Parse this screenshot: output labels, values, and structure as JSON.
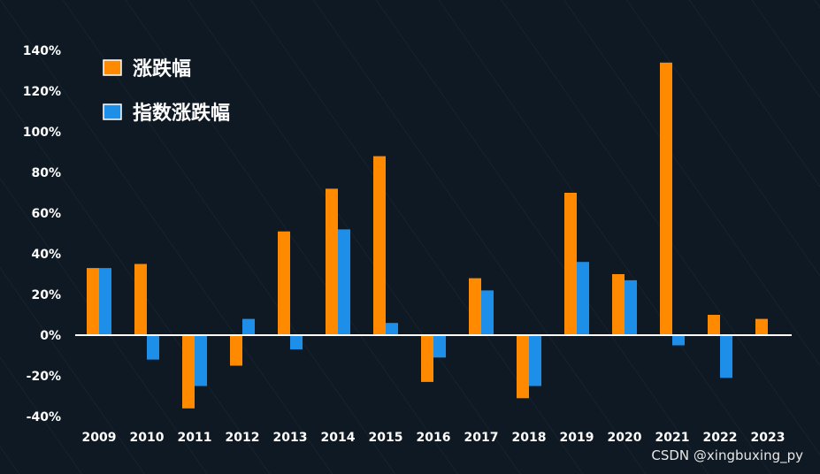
{
  "chart_data": {
    "type": "bar",
    "categories": [
      "2009",
      "2010",
      "2011",
      "2012",
      "2013",
      "2014",
      "2015",
      "2016",
      "2017",
      "2018",
      "2019",
      "2020",
      "2021",
      "2022",
      "2023"
    ],
    "series": [
      {
        "name": "涨跌幅",
        "color": "#ff8a00",
        "values": [
          33,
          35,
          -36,
          -15,
          51,
          72,
          88,
          -23,
          28,
          -31,
          70,
          30,
          134,
          10,
          8
        ]
      },
      {
        "name": "指数涨跌幅",
        "color": "#1e8fe8",
        "values": [
          33,
          -12,
          -25,
          8,
          -7,
          52,
          6,
          -11,
          22,
          -25,
          36,
          27,
          -5,
          -21,
          null
        ]
      }
    ],
    "yticks": [
      "140%",
      "120%",
      "100%",
      "80%",
      "60%",
      "40%",
      "20%",
      "0%",
      "-20%",
      "-40%"
    ],
    "ylim": [
      -40,
      140
    ],
    "grid": false,
    "legend_position": "top-left",
    "background": "#0f1923"
  },
  "watermark": "CSDN @xingbuxing_py"
}
